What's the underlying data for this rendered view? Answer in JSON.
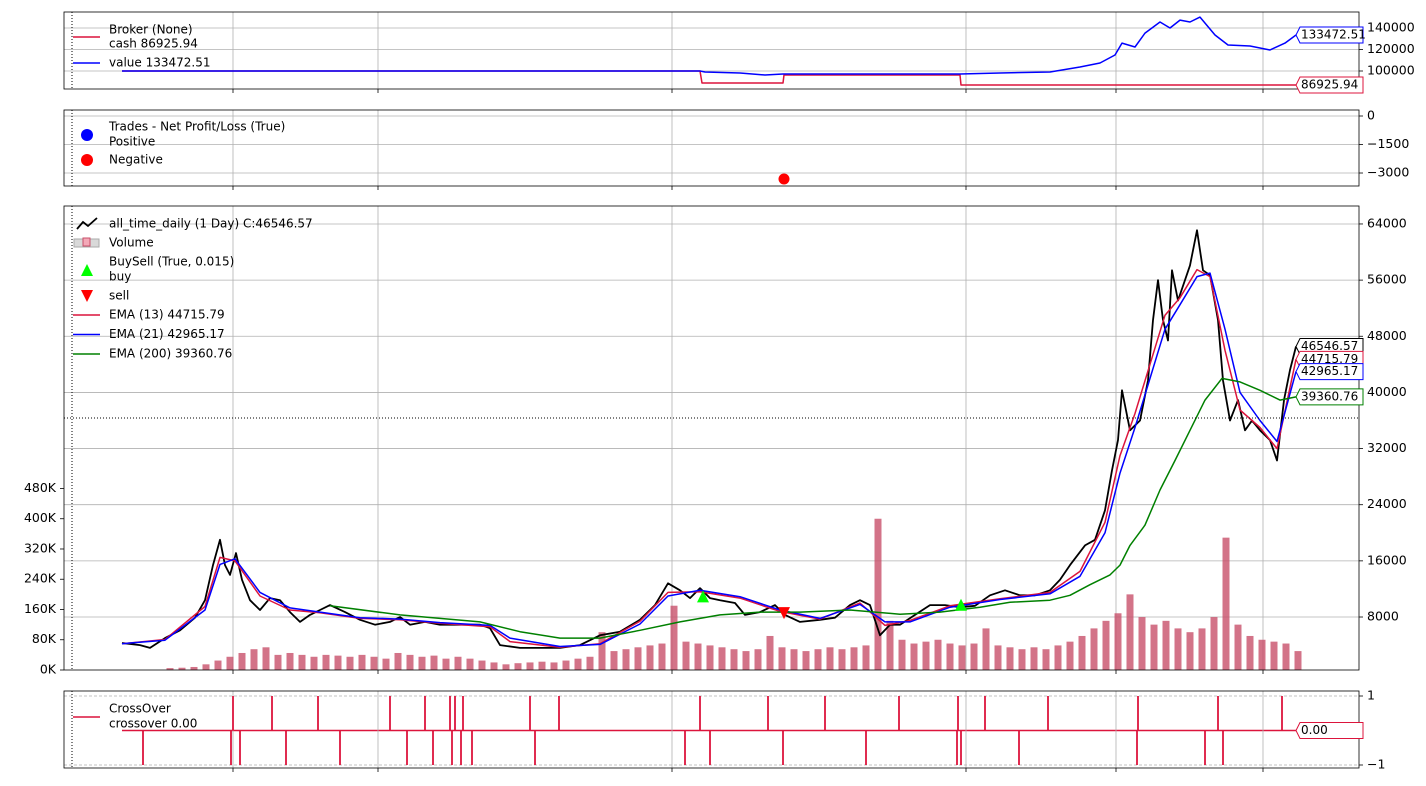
{
  "chart_data": [
    {
      "type": "line",
      "title": "Broker (None)",
      "xlim": [
        -58,
        1237
      ],
      "xgrid": [
        111,
        256,
        550,
        844,
        994,
        1141
      ],
      "ylim": [
        83250,
        154900
      ],
      "yticks": [
        100000,
        120000,
        140000
      ],
      "grid": true,
      "series": [
        {
          "name": "cash 86925.94",
          "color": "#dc143c",
          "x": [
            0,
            578,
            580,
            661,
            662,
            838,
            839,
            1174
          ],
          "values": [
            100000,
            100000,
            88800,
            88800,
            96300,
            96300,
            86925.94,
            86925.94
          ]
        },
        {
          "name": "value 133472.51",
          "color": "#0000ff",
          "x": [
            0,
            578,
            583,
            618,
            643,
            661,
            838,
            878,
            928,
            958,
            978,
            993,
            1000,
            1013,
            1023,
            1038,
            1048,
            1058,
            1068,
            1078,
            1093,
            1106,
            1128,
            1148,
            1163,
            1174
          ],
          "values": [
            100000,
            100000,
            99100,
            98100,
            96300,
            97200,
            97200,
            98100,
            99100,
            103700,
            107400,
            114900,
            126000,
            122300,
            135300,
            145600,
            140000,
            147400,
            145600,
            150200,
            133500,
            124200,
            123300,
            119500,
            126000,
            133472.51
          ]
        }
      ]
    },
    {
      "type": "scatter",
      "title": "Trades - Net Profit/Loss (True)",
      "xlim": [
        -58,
        1237
      ],
      "xgrid": [
        111,
        256,
        550,
        844,
        994,
        1141
      ],
      "ylim": [
        -3684,
        316
      ],
      "yticks": [
        0,
        {
          "value": -1500,
          "label": "−1500"
        },
        {
          "value": -3000,
          "label": "−3000"
        }
      ],
      "grid": true,
      "series": [
        {
          "name": "Positive",
          "color": "#0000ff",
          "x": [],
          "values": []
        },
        {
          "name": "Negative",
          "color": "#ff0000",
          "x": [
            662
          ],
          "values": [
            -3316
          ]
        }
      ]
    },
    {
      "type": "price",
      "xlim": [
        -58,
        1237
      ],
      "xgrid": [
        111,
        256,
        550,
        844,
        994,
        1141
      ],
      "ylim": [
        450,
        66560
      ],
      "yticks": [
        8000,
        16000,
        24000,
        32000,
        40000,
        48000,
        56000,
        64000
      ],
      "grid": true,
      "y2lim": [
        0,
        1227000
      ],
      "y2ticks": [
        {
          "value": 0,
          "label": "0K"
        },
        {
          "value": 80000,
          "label": "80K"
        },
        {
          "value": 160000,
          "label": "160K"
        },
        {
          "value": 240000,
          "label": "240K"
        },
        {
          "value": 320000,
          "label": "320K"
        },
        {
          "value": 400000,
          "label": "400K"
        },
        {
          "value": 480000,
          "label": "480K"
        }
      ],
      "series": [
        {
          "name": "all_time_daily (1 Day) C:46546.57",
          "color": "#000000",
          "x": [
            0,
            18,
            28,
            43,
            58,
            73,
            83,
            91,
            98,
            103,
            108,
            114,
            120,
            128,
            138,
            148,
            158,
            168,
            178,
            188,
            198,
            208,
            223,
            238,
            253,
            268,
            278,
            288,
            303,
            318,
            338,
            358,
            368,
            378,
            398,
            418,
            438,
            458,
            478,
            498,
            518,
            533,
            546,
            558,
            568,
            578,
            588,
            598,
            613,
            623,
            638,
            653,
            663,
            678,
            698,
            713,
            728,
            738,
            748,
            758,
            768,
            778,
            793,
            808,
            823,
            838,
            853,
            868,
            883,
            898,
            913,
            928,
            938,
            948,
            963,
            973,
            983,
            990,
            996,
            1000,
            1008,
            1018,
            1026,
            1031,
            1036,
            1041,
            1046,
            1050,
            1056,
            1063,
            1068,
            1075,
            1081,
            1088,
            1096,
            1101,
            1108,
            1116,
            1123,
            1130,
            1138,
            1148,
            1155,
            1162,
            1168,
            1174
          ],
          "values": [
            4300,
            4000,
            3600,
            5000,
            6100,
            7900,
            10400,
            15400,
            19000,
            15400,
            14000,
            17100,
            13300,
            10400,
            9000,
            10700,
            10400,
            8700,
            7300,
            8300,
            9000,
            9700,
            8700,
            7600,
            6900,
            7300,
            8000,
            6900,
            7300,
            6900,
            6900,
            6900,
            6400,
            4000,
            3600,
            3600,
            3600,
            4000,
            5400,
            5900,
            7600,
            9700,
            12800,
            11800,
            10700,
            12100,
            10700,
            10400,
            10000,
            8300,
            8700,
            9700,
            8300,
            7300,
            7600,
            7900,
            9700,
            10400,
            9700,
            5400,
            6900,
            6900,
            8300,
            9700,
            9700,
            9400,
            9600,
            11100,
            11800,
            11100,
            11100,
            11800,
            13300,
            15400,
            18200,
            19000,
            23200,
            28900,
            33200,
            40300,
            34600,
            36000,
            41700,
            50300,
            56000,
            50300,
            47400,
            57400,
            53100,
            56000,
            58100,
            63100,
            57400,
            56700,
            50300,
            41700,
            36000,
            38900,
            34600,
            36000,
            34600,
            33200,
            30300,
            38900,
            43200,
            46546.57
          ]
        },
        {
          "name": "Volume",
          "color": "#c8506a",
          "axis": "y2",
          "x": [
            48,
            60,
            72,
            84,
            96,
            108,
            120,
            132,
            144,
            156,
            168,
            180,
            192,
            204,
            216,
            228,
            240,
            252,
            264,
            276,
            288,
            300,
            312,
            324,
            336,
            348,
            360,
            372,
            384,
            396,
            408,
            420,
            432,
            444,
            456,
            468,
            480,
            492,
            504,
            516,
            528,
            540,
            552,
            564,
            576,
            588,
            600,
            612,
            624,
            636,
            648,
            660,
            672,
            684,
            696,
            708,
            720,
            732,
            744,
            756,
            768,
            780,
            792,
            804,
            816,
            828,
            840,
            852,
            864,
            876,
            888,
            900,
            912,
            924,
            936,
            948,
            960,
            972,
            984,
            996,
            1008,
            1020,
            1032,
            1044,
            1056,
            1068,
            1080,
            1092,
            1104,
            1116,
            1128,
            1140,
            1152,
            1164,
            1176
          ],
          "values": [
            5000,
            6000,
            8000,
            15000,
            25000,
            35000,
            45000,
            55000,
            60000,
            40000,
            45000,
            40000,
            35000,
            40000,
            38000,
            35000,
            40000,
            35000,
            30000,
            45000,
            40000,
            35000,
            38000,
            30000,
            35000,
            30000,
            25000,
            20000,
            15000,
            18000,
            20000,
            22000,
            20000,
            25000,
            30000,
            35000,
            100000,
            50000,
            55000,
            60000,
            65000,
            70000,
            170000,
            75000,
            70000,
            65000,
            60000,
            55000,
            50000,
            55000,
            90000,
            60000,
            55000,
            50000,
            55000,
            60000,
            55000,
            60000,
            65000,
            400000,
            130000,
            80000,
            70000,
            75000,
            80000,
            70000,
            65000,
            70000,
            110000,
            65000,
            60000,
            55000,
            60000,
            55000,
            65000,
            75000,
            90000,
            110000,
            130000,
            150000,
            200000,
            140000,
            120000,
            130000,
            110000,
            100000,
            110000,
            140000,
            350000,
            120000,
            90000,
            80000,
            75000,
            70000,
            50000
          ]
        },
        {
          "name": "EMA (13) 44715.79",
          "color": "#dc143c",
          "x": [
            0,
            43,
            83,
            98,
            113,
            138,
            168,
            198,
            238,
            278,
            318,
            368,
            388,
            438,
            478,
            518,
            546,
            578,
            618,
            658,
            698,
            738,
            763,
            788,
            828,
            878,
            928,
            958,
            983,
            998,
            1013,
            1028,
            1043,
            1058,
            1075,
            1088,
            1103,
            1118,
            1138,
            1155,
            1174
          ],
          "values": [
            4200,
            4800,
            9500,
            16500,
            16000,
            11000,
            9000,
            8600,
            7800,
            7600,
            7100,
            6600,
            4500,
            3700,
            4200,
            7400,
            11500,
            11600,
            10700,
            8800,
            7700,
            10000,
            6800,
            7500,
            9600,
            10600,
            11500,
            14500,
            21500,
            31000,
            37000,
            44000,
            51000,
            53500,
            57500,
            56500,
            46000,
            37500,
            35000,
            32000,
            44715.79
          ]
        },
        {
          "name": "EMA (21) 42965.17",
          "color": "#0000ff",
          "x": [
            0,
            43,
            83,
            98,
            113,
            138,
            168,
            198,
            238,
            278,
            318,
            368,
            388,
            438,
            478,
            518,
            546,
            578,
            618,
            658,
            698,
            738,
            763,
            788,
            828,
            878,
            928,
            958,
            983,
            998,
            1013,
            1028,
            1043,
            1058,
            1075,
            1088,
            1103,
            1118,
            1138,
            1155,
            1174
          ],
          "values": [
            4200,
            4700,
            9000,
            15500,
            16300,
            11500,
            9300,
            8700,
            7900,
            7700,
            7200,
            6800,
            5000,
            3800,
            4100,
            7000,
            11000,
            11800,
            10900,
            9000,
            7800,
            9800,
            7300,
            7300,
            9400,
            10500,
            11300,
            13800,
            20000,
            28500,
            35000,
            42000,
            49000,
            52500,
            56500,
            57000,
            49000,
            40000,
            36000,
            33000,
            42965.17
          ]
        },
        {
          "name": "EMA (200) 39360.76",
          "color": "#008000",
          "x": [
            208,
            278,
            358,
            398,
            438,
            478,
            518,
            558,
            598,
            638,
            678,
            728,
            778,
            818,
            858,
            888,
            928,
            948,
            968,
            988,
            998,
            1008,
            1023,
            1038,
            1053,
            1068,
            1083,
            1100,
            1118,
            1138,
            1158,
            1174
          ],
          "values": [
            9600,
            8300,
            7300,
            5900,
            5000,
            5000,
            6100,
            7300,
            8300,
            8700,
            8700,
            9000,
            8400,
            8700,
            9400,
            10100,
            10400,
            11100,
            12600,
            14000,
            15400,
            18200,
            21100,
            26100,
            30300,
            34600,
            38900,
            42000,
            41500,
            40300,
            38900,
            39360.76
          ]
        }
      ],
      "markers_title": "BuySell (True, 0.015)",
      "markers": [
        {
          "name": "buy",
          "color": "#00ff00",
          "x": [
            581,
            839
          ],
          "values": [
            10800,
            9600
          ]
        },
        {
          "name": "sell",
          "color": "#ff0000",
          "x": [
            662
          ],
          "values": [
            8700
          ]
        }
      ]
    },
    {
      "type": "stem",
      "title": "CrossOver",
      "name": "crossover 0.00",
      "color": "#dc143c",
      "tag": "0.00",
      "xlim": [
        -58,
        1237
      ],
      "xgrid": [
        111,
        256,
        550,
        844,
        994,
        1141
      ],
      "ylim": [
        -1.087,
        1.145
      ],
      "yticks": [
        1,
        {
          "value": -1,
          "label": "−1"
        }
      ],
      "grid": true,
      "x": [
        21,
        109,
        111,
        118,
        150,
        164,
        196,
        218,
        268,
        285,
        303,
        311,
        328,
        330,
        333,
        339,
        341,
        350,
        408,
        413,
        437,
        563,
        578,
        588,
        646,
        661,
        703,
        744,
        777,
        835,
        836,
        839,
        863,
        897,
        926,
        1015,
        1016,
        1083,
        1096,
        1101,
        1160
      ],
      "values": [
        -1,
        -1,
        1,
        -1,
        1,
        -1,
        1,
        -1,
        1,
        -1,
        1,
        -1,
        1,
        -1,
        1,
        -1,
        1,
        -1,
        1,
        -1,
        1,
        -1,
        1,
        -1,
        1,
        -1,
        1,
        -1,
        1,
        -1,
        1,
        -1,
        1,
        -1,
        1,
        -1,
        1,
        -1,
        1,
        -1,
        1
      ]
    }
  ]
}
